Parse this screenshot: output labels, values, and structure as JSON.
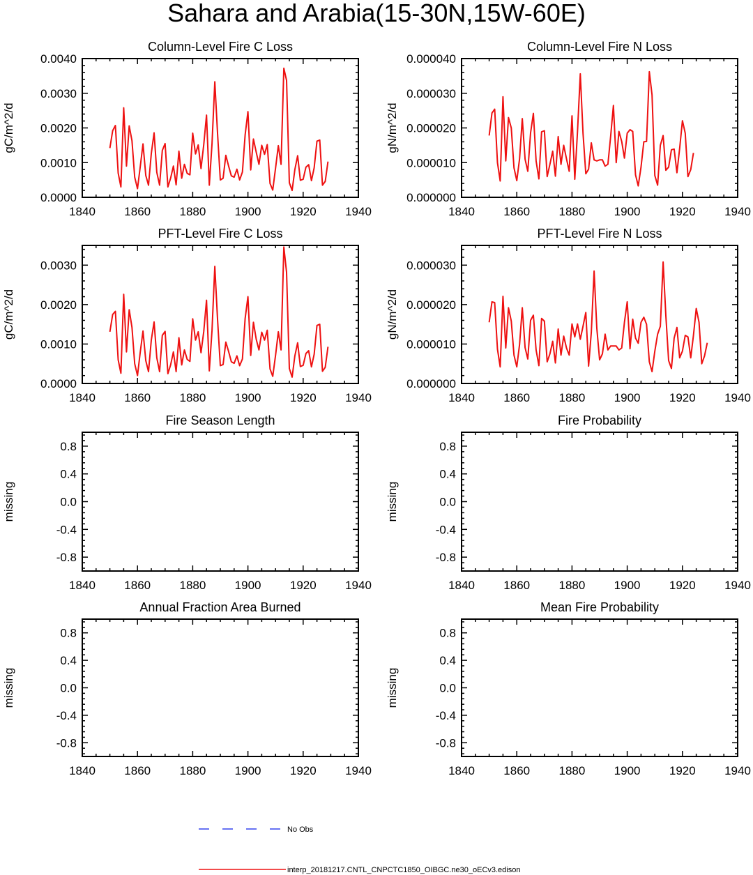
{
  "figure": {
    "title": "Sahara and Arabia(15-30N,15W-60E)",
    "legend": [
      {
        "label": "No Obs",
        "color": "#3344ee",
        "dash": "dashed"
      },
      {
        "label": "interp_20181217.CNTL_CNPCTC1850_OIBGC.ne30_oECv3.edison",
        "color": "#ee1111",
        "dash": "solid"
      }
    ]
  },
  "chart_data": [
    {
      "type": "line",
      "title": "Column-Level Fire C Loss",
      "ylabel": "gC/m^2/d",
      "xlim": [
        1840,
        1940
      ],
      "xticks": [
        1840,
        1860,
        1880,
        1900,
        1920,
        1940
      ],
      "ylim": [
        0,
        0.004
      ],
      "yticks": [
        0,
        0.001,
        0.002,
        0.003,
        0.004
      ],
      "ytick_labels": [
        "0.0000",
        "0.0010",
        "0.0020",
        "0.0030",
        "0.0040"
      ],
      "series": [
        {
          "name": "interp_20181217.CNTL_CNPCTC1850_OIBGC.ne30_oECv3.edison",
          "color": "#ee1111",
          "x_start": 1850,
          "values": [
            0.00142,
            0.00192,
            0.00207,
            0.0007,
            0.0003,
            0.00258,
            0.0009,
            0.00206,
            0.00163,
            0.00058,
            0.00025,
            0.00089,
            0.00154,
            0.00063,
            0.00035,
            0.00126,
            0.00186,
            0.00072,
            0.00035,
            0.00135,
            0.00155,
            0.0003,
            0.00055,
            0.0009,
            0.00036,
            0.00133,
            0.00055,
            0.00095,
            0.00069,
            0.00065,
            0.00185,
            0.00125,
            0.00151,
            0.00083,
            0.00151,
            0.00237,
            0.00035,
            0.00155,
            0.00333,
            0.00185,
            0.0005,
            0.00055,
            0.00121,
            0.0009,
            0.00062,
            0.00058,
            0.00081,
            0.0005,
            0.00073,
            0.0018,
            0.00247,
            0.00079,
            0.00168,
            0.0013,
            0.00095,
            0.0015,
            0.00124,
            0.00152,
            0.0004,
            0.00021,
            0.00084,
            0.00149,
            0.00095,
            0.00372,
            0.00337,
            0.00042,
            0.0002,
            0.0008,
            0.0012,
            0.00049,
            0.00052,
            0.00087,
            0.00094,
            0.00048,
            0.00085,
            0.00162,
            0.00165,
            0.00035,
            0.00046,
            0.00103
          ]
        }
      ]
    },
    {
      "type": "line",
      "title": "Column-Level Fire N Loss",
      "ylabel": "gN/m^2/d",
      "xlim": [
        1840,
        1940
      ],
      "xticks": [
        1840,
        1860,
        1880,
        1900,
        1920,
        1940
      ],
      "ylim": [
        0,
        4e-05
      ],
      "yticks": [
        0,
        1e-05,
        2e-05,
        3e-05,
        4e-05
      ],
      "ytick_labels": [
        "0.000000",
        "0.000010",
        "0.000020",
        "0.000030",
        "0.000040"
      ],
      "series": [
        {
          "name": "interp_20181217.CNTL_CNPCTC1850_OIBGC.ne30_oECv3.edison",
          "color": "#ee1111",
          "x_start": 1850,
          "values": [
            1.78e-05,
            2.43e-05,
            2.54e-05,
            1e-05,
            4.7e-06,
            2.9e-05,
            1.05e-05,
            2.3e-05,
            2e-05,
            8.5e-06,
            4.8e-06,
            1.11e-05,
            2.27e-05,
            1.1e-05,
            7.5e-06,
            1.86e-05,
            2.42e-05,
            1.05e-05,
            5.3e-06,
            1.89e-05,
            1.92e-05,
            6e-06,
            9.5e-06,
            1.33e-05,
            6.1e-06,
            1.75e-05,
            9.5e-06,
            1.5e-05,
            1.11e-05,
            7.5e-06,
            2.35e-05,
            5.2e-06,
            1.9e-05,
            3.56e-05,
            1.85e-05,
            6.8e-06,
            8.1e-06,
            1.57e-05,
            1.08e-05,
            1.05e-05,
            1.08e-05,
            1.08e-05,
            9e-06,
            9.5e-06,
            1.75e-05,
            2.65e-05,
            1e-05,
            1.9e-05,
            1.61e-05,
            1.13e-05,
            1.85e-05,
            1.95e-05,
            1.9e-05,
            6.5e-06,
            3.3e-06,
            8.7e-06,
            1.6e-05,
            1.61e-05,
            3.62e-05,
            2.95e-05,
            6.3e-06,
            3.5e-06,
            1.5e-05,
            1.78e-05,
            7.8e-06,
            8.7e-06,
            1.37e-05,
            1.39e-05,
            7.1e-06,
            1.41e-05,
            2.21e-05,
            1.85e-05,
            6e-06,
            8e-06,
            1.28e-05
          ]
        }
      ]
    },
    {
      "type": "line",
      "title": "PFT-Level Fire C Loss",
      "ylabel": "gC/m^2/d",
      "xlim": [
        1840,
        1940
      ],
      "xticks": [
        1840,
        1860,
        1880,
        1900,
        1920,
        1940
      ],
      "ylim": [
        0,
        0.0035
      ],
      "yticks": [
        0,
        0.001,
        0.002,
        0.003
      ],
      "ytick_labels": [
        "0.0000",
        "0.0010",
        "0.0020",
        "0.0030"
      ],
      "series": [
        {
          "name": "interp_20181217.CNTL_CNPCTC1850_OIBGC.ne30_oECv3.edison",
          "color": "#ee1111",
          "x_start": 1850,
          "values": [
            0.00131,
            0.00175,
            0.00183,
            0.0006,
            0.00026,
            0.00226,
            0.0008,
            0.00187,
            0.00142,
            0.0005,
            0.0002,
            0.0008,
            0.00133,
            0.00058,
            0.0003,
            0.0011,
            0.00156,
            0.00065,
            0.0003,
            0.00122,
            0.00132,
            0.00025,
            0.00047,
            0.0008,
            0.0003,
            0.00116,
            0.00047,
            0.00085,
            0.00061,
            0.00056,
            0.00164,
            0.0011,
            0.00131,
            0.00078,
            0.00131,
            0.00211,
            0.00032,
            0.00135,
            0.00297,
            0.00163,
            0.00045,
            0.00048,
            0.00105,
            0.00081,
            0.00055,
            0.00051,
            0.0007,
            0.00045,
            0.00062,
            0.00165,
            0.0022,
            0.00071,
            0.00155,
            0.00112,
            0.00085,
            0.0013,
            0.0011,
            0.00135,
            0.00037,
            0.00018,
            0.00071,
            0.00131,
            0.00085,
            0.00346,
            0.00282,
            0.00038,
            0.00016,
            0.0007,
            0.00103,
            0.00043,
            0.00046,
            0.00076,
            0.00083,
            0.00042,
            0.00074,
            0.00147,
            0.0015,
            0.00031,
            0.00041,
            0.00093
          ]
        }
      ]
    },
    {
      "type": "line",
      "title": "PFT-Level Fire N Loss",
      "ylabel": "gN/m^2/d",
      "xlim": [
        1840,
        1940
      ],
      "xticks": [
        1840,
        1860,
        1880,
        1900,
        1920,
        1940
      ],
      "ylim": [
        0,
        3.5e-05
      ],
      "yticks": [
        0,
        1e-05,
        2e-05,
        3e-05
      ],
      "ytick_labels": [
        "0.000000",
        "0.000010",
        "0.000020",
        "0.000030"
      ],
      "series": [
        {
          "name": "interp_20181217.CNTL_CNPCTC1850_OIBGC.ne30_oECv3.edison",
          "color": "#ee1111",
          "x_start": 1850,
          "values": [
            1.55e-05,
            2.07e-05,
            2.05e-05,
            8.7e-06,
            4.2e-06,
            2.21e-05,
            9e-06,
            1.92e-05,
            1.58e-05,
            7.2e-06,
            4.2e-06,
            9.9e-06,
            1.92e-05,
            9.1e-06,
            6.2e-06,
            1.6e-05,
            1.73e-05,
            8.5e-06,
            4.5e-06,
            1.65e-05,
            1.58e-05,
            5.5e-06,
            7.5e-06,
            1.07e-05,
            5.2e-06,
            1.38e-05,
            7.2e-06,
            1.2e-05,
            9e-06,
            7.2e-06,
            1.51e-05,
            1.18e-05,
            1.51e-05,
            1.12e-05,
            1.45e-05,
            1.8e-05,
            4.4e-06,
            1.3e-05,
            2.85e-05,
            1.4e-05,
            6e-06,
            7.5e-06,
            1.25e-05,
            8.5e-06,
            9.5e-06,
            9.5e-06,
            9.5e-06,
            8.5e-06,
            9e-06,
            1.55e-05,
            2.07e-05,
            8.8e-06,
            1.63e-05,
            1.15e-05,
            1.02e-05,
            1.55e-05,
            1.68e-05,
            1.5e-05,
            5.5e-06,
            3e-06,
            8.2e-06,
            1.25e-05,
            1.45e-05,
            3.08e-05,
            1.72e-05,
            5.8e-06,
            3.8e-06,
            1.15e-05,
            1.42e-05,
            6.5e-06,
            8.2e-06,
            1.22e-05,
            1.18e-05,
            6.5e-06,
            1.22e-05,
            1.9e-05,
            1.55e-05,
            5e-06,
            7e-06,
            1.03e-05
          ]
        }
      ]
    },
    {
      "type": "line",
      "title": "Fire Season Length",
      "ylabel": "missing",
      "xlim": [
        1840,
        1940
      ],
      "xticks": [
        1840,
        1860,
        1880,
        1900,
        1920,
        1940
      ],
      "ylim": [
        -1.0,
        1.0
      ],
      "yticks": [
        -0.8,
        -0.4,
        0.0,
        0.4,
        0.8
      ],
      "ytick_labels": [
        "-0.8",
        "-0.4",
        "0.0",
        "0.4",
        "0.8"
      ],
      "series": []
    },
    {
      "type": "line",
      "title": "Fire Probability",
      "ylabel": "missing",
      "xlim": [
        1840,
        1940
      ],
      "xticks": [
        1840,
        1860,
        1880,
        1900,
        1920,
        1940
      ],
      "ylim": [
        -1.0,
        1.0
      ],
      "yticks": [
        -0.8,
        -0.4,
        0.0,
        0.4,
        0.8
      ],
      "ytick_labels": [
        "-0.8",
        "-0.4",
        "0.0",
        "0.4",
        "0.8"
      ],
      "series": []
    },
    {
      "type": "line",
      "title": "Annual Fraction Area Burned",
      "ylabel": "missing",
      "xlim": [
        1840,
        1940
      ],
      "xticks": [
        1840,
        1860,
        1880,
        1900,
        1920,
        1940
      ],
      "ylim": [
        -1.0,
        1.0
      ],
      "yticks": [
        -0.8,
        -0.4,
        0.0,
        0.4,
        0.8
      ],
      "ytick_labels": [
        "-0.8",
        "-0.4",
        "0.0",
        "0.4",
        "0.8"
      ],
      "series": []
    },
    {
      "type": "line",
      "title": "Mean Fire Probability",
      "ylabel": "missing",
      "xlim": [
        1840,
        1940
      ],
      "xticks": [
        1840,
        1860,
        1880,
        1900,
        1920,
        1940
      ],
      "ylim": [
        -1.0,
        1.0
      ],
      "yticks": [
        -0.8,
        -0.4,
        0.0,
        0.4,
        0.8
      ],
      "ytick_labels": [
        "-0.8",
        "-0.4",
        "0.0",
        "0.4",
        "0.8"
      ],
      "series": []
    }
  ]
}
